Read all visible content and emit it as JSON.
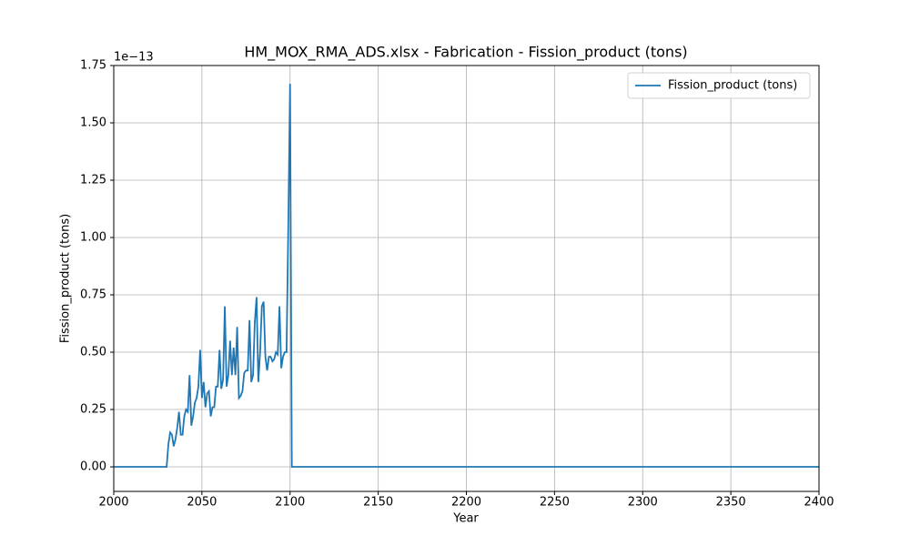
{
  "chart_data": {
    "type": "line",
    "title": "HM_MOX_RMA_ADS.xlsx - Fabrication - Fission_product (tons)",
    "xlabel": "Year",
    "ylabel": "Fission_product (tons)",
    "y_offset_label": "1e−13",
    "xlim": [
      2000,
      2400
    ],
    "xticks": [
      2000,
      2050,
      2100,
      2150,
      2200,
      2250,
      2300,
      2350,
      2400
    ],
    "ylim": [
      -0.107,
      1.75
    ],
    "yticks": [
      {
        "value": 0,
        "label": "0.00"
      },
      0.25,
      {
        "value": 0.5,
        "label": "0.50"
      },
      0.75,
      {
        "value": 1,
        "label": "1.00"
      },
      1.25,
      {
        "value": 1.5,
        "label": "1.50"
      },
      1.75
    ],
    "grid": true,
    "legend": "upper right",
    "x": [
      2000,
      2030,
      2031,
      2032,
      2033,
      2034,
      2035,
      2036,
      2037,
      2038,
      2039,
      2040,
      2041,
      2042,
      2043,
      2044,
      2045,
      2046,
      2047,
      2048,
      2049,
      2050,
      2051,
      2052,
      2053,
      2054,
      2055,
      2056,
      2057,
      2058,
      2059,
      2060,
      2061,
      2062,
      2063,
      2064,
      2065,
      2066,
      2067,
      2068,
      2069,
      2070,
      2071,
      2072,
      2073,
      2074,
      2075,
      2076,
      2077,
      2078,
      2079,
      2080,
      2081,
      2082,
      2083,
      2084,
      2085,
      2086,
      2087,
      2088,
      2089,
      2090,
      2091,
      2092,
      2093,
      2094,
      2095,
      2096,
      2097,
      2098,
      2099,
      2100,
      2101,
      2400
    ],
    "series": [
      {
        "name": "Fission_product (tons)",
        "color": "#1f77b4",
        "values": [
          0,
          0,
          0.1,
          0.15,
          0.14,
          0.09,
          0.12,
          0.17,
          0.24,
          0.14,
          0.14,
          0.22,
          0.25,
          0.24,
          0.4,
          0.18,
          0.22,
          0.28,
          0.3,
          0.35,
          0.51,
          0.3,
          0.37,
          0.26,
          0.32,
          0.33,
          0.22,
          0.26,
          0.26,
          0.35,
          0.35,
          0.51,
          0.34,
          0.38,
          0.7,
          0.35,
          0.4,
          0.55,
          0.4,
          0.52,
          0.4,
          0.61,
          0.3,
          0.31,
          0.33,
          0.41,
          0.42,
          0.42,
          0.64,
          0.37,
          0.4,
          0.63,
          0.74,
          0.37,
          0.5,
          0.7,
          0.72,
          0.48,
          0.42,
          0.48,
          0.48,
          0.46,
          0.47,
          0.5,
          0.49,
          0.7,
          0.43,
          0.48,
          0.5,
          0.5,
          1.05,
          1.67,
          0,
          0
        ]
      }
    ]
  }
}
